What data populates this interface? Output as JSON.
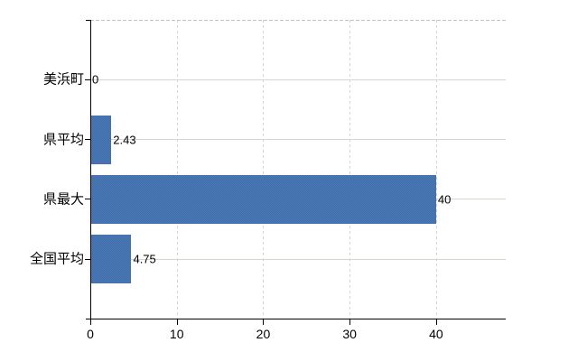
{
  "chart_data": {
    "type": "bar",
    "orientation": "horizontal",
    "title": "",
    "xlabel": "",
    "ylabel": "",
    "categories": [
      "美浜町",
      "県平均",
      "県最大",
      "全国平均"
    ],
    "values": [
      0,
      2.43,
      40,
      4.75
    ],
    "value_labels": [
      "0",
      "2.43",
      "40",
      "4.75"
    ],
    "x_ticks": [
      0,
      10,
      20,
      30,
      40
    ],
    "x_tick_labels": [
      "0",
      "10",
      "20",
      "30",
      "40"
    ],
    "xlim": [
      0,
      48
    ],
    "grid": {
      "vertical_style": "dashed",
      "horizontal_style": "solid",
      "top_border_style": "dashed"
    },
    "legend": "none",
    "colors": {
      "bar_primary": "#3c6ca9",
      "bar_secondary": "#4e7ab6",
      "axis": "#000000",
      "text": "#000000",
      "horizontal_gridline": "#d2d8ca",
      "vertical_gridline": "#d5d1d4",
      "top_border": "#c7c3bf",
      "background": "#ffffff"
    }
  }
}
